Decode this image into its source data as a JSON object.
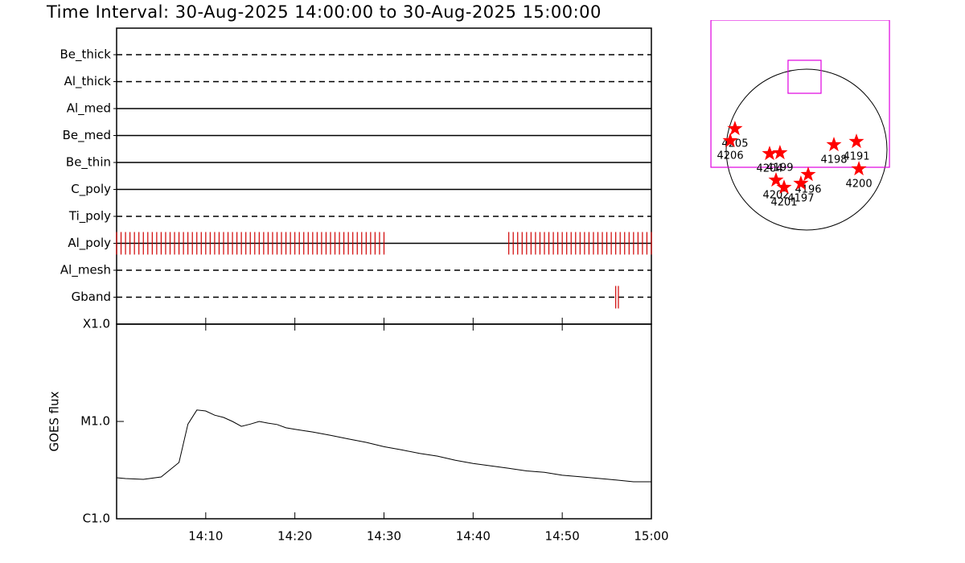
{
  "title": "Time Interval: 30-Aug-2025 14:00:00 to 30-Aug-2025 15:00:00",
  "chart_data": [
    {
      "type": "timeline",
      "xlim": [
        0,
        60
      ],
      "tick_color": "#d00000",
      "rows": [
        {
          "label": "Be_thick",
          "line": "dashed",
          "x": []
        },
        {
          "label": "Al_thick",
          "line": "dashed",
          "x": []
        },
        {
          "label": "Al_med",
          "line": "solid",
          "x": []
        },
        {
          "label": "Be_med",
          "line": "solid",
          "x": []
        },
        {
          "label": "Be_thin",
          "line": "solid",
          "x": []
        },
        {
          "label": "C_poly",
          "line": "solid",
          "x": []
        },
        {
          "label": "Ti_poly",
          "line": "dashed",
          "x": []
        },
        {
          "label": "Al_poly",
          "line": "solid",
          "x": [
            0,
            0.5,
            1,
            1.5,
            2,
            2.5,
            3,
            3.5,
            4,
            4.5,
            5,
            5.5,
            6,
            6.5,
            7,
            7.5,
            8,
            8.5,
            9,
            9.5,
            10,
            10.5,
            11,
            11.5,
            12,
            12.5,
            13,
            13.5,
            14,
            14.5,
            15,
            15.5,
            16,
            16.5,
            17,
            17.5,
            18,
            18.5,
            19,
            19.5,
            20,
            20.5,
            21,
            21.5,
            22,
            22.5,
            23,
            23.5,
            24,
            24.5,
            25,
            25.5,
            26,
            26.5,
            27,
            27.5,
            28,
            28.5,
            29,
            29.5,
            30,
            44,
            44.5,
            45,
            45.5,
            46,
            46.5,
            47,
            47.5,
            48,
            48.5,
            49,
            49.5,
            50,
            50.5,
            51,
            51.5,
            52,
            52.5,
            53,
            53.5,
            54,
            54.5,
            55,
            55.5,
            56,
            56.5,
            57,
            57.5,
            58,
            58.5,
            59,
            59.5,
            60
          ]
        },
        {
          "label": "Al_mesh",
          "line": "dashed",
          "x": []
        },
        {
          "label": "Gband",
          "line": "dashed",
          "x": [
            56.0,
            56.3
          ]
        }
      ]
    },
    {
      "type": "line",
      "ylabel": "GOES flux",
      "color": "#000000",
      "log_scale": true,
      "xlim": [
        0,
        60
      ],
      "ylim": [
        1e-06,
        0.0001
      ],
      "xticks": [
        {
          "value": 10,
          "label": "14:10"
        },
        {
          "value": 20,
          "label": "14:20"
        },
        {
          "value": 30,
          "label": "14:30"
        },
        {
          "value": 40,
          "label": "14:40"
        },
        {
          "value": 50,
          "label": "14:50"
        },
        {
          "value": 60,
          "label": "15:00"
        }
      ],
      "yticks": [
        {
          "value": 1e-06,
          "label": "C1.0"
        },
        {
          "value": 1e-05,
          "label": "M1.0"
        },
        {
          "value": 0.0001,
          "label": "X1.0"
        }
      ],
      "x": [
        0,
        1,
        3,
        5,
        7,
        8,
        9,
        10,
        11,
        12,
        13,
        14,
        15,
        16,
        17,
        18,
        19,
        20,
        22,
        24,
        26,
        28,
        30,
        32,
        34,
        36,
        38,
        40,
        42,
        44,
        46,
        48,
        50,
        52,
        54,
        56,
        58,
        60
      ],
      "values": [
        2.64e-06,
        2.59e-06,
        2.54e-06,
        2.69e-06,
        3.79e-06,
        9.4e-06,
        1.31e-05,
        1.28e-05,
        1.16e-05,
        1.1e-05,
        1e-05,
        8.9e-06,
        9.4e-06,
        1e-05,
        9.6e-06,
        9.3e-06,
        8.6e-06,
        8.3e-06,
        7.8e-06,
        7.2e-06,
        6.6e-06,
        6.1e-06,
        5.5e-06,
        5.1e-06,
        4.7e-06,
        4.4e-06,
        4e-06,
        3.7e-06,
        3.5e-06,
        3.3e-06,
        3.1e-06,
        3e-06,
        2.8e-06,
        2.7e-06,
        2.6e-06,
        2.5e-06,
        2.4e-06,
        2.4e-06
      ]
    },
    {
      "type": "map",
      "disk_radius": 950,
      "disk_color": "#000000",
      "star_color": "#ff0000",
      "fov_color": "#e000e0",
      "fov": [
        {
          "x": -1130,
          "y": -209,
          "width": 2109,
          "height": 1739
        },
        {
          "x": -219,
          "y": 665,
          "width": 390,
          "height": 390
        }
      ],
      "regions": [
        {
          "label": "4205",
          "x": -846,
          "y": 247
        },
        {
          "label": "4206",
          "x": -902,
          "y": 105
        },
        {
          "label": "4204",
          "x": -437,
          "y": -48
        },
        {
          "label": "4199",
          "x": -314,
          "y": -38
        },
        {
          "label": "4198",
          "x": 323,
          "y": 57
        },
        {
          "label": "4191",
          "x": 589,
          "y": 95
        },
        {
          "label": "4200",
          "x": 618,
          "y": -228
        },
        {
          "label": "4196",
          "x": 19,
          "y": -295
        },
        {
          "label": "4197",
          "x": -67,
          "y": -399
        },
        {
          "label": "4202",
          "x": -361,
          "y": -361
        },
        {
          "label": "4201",
          "x": -266,
          "y": -447
        }
      ]
    }
  ]
}
